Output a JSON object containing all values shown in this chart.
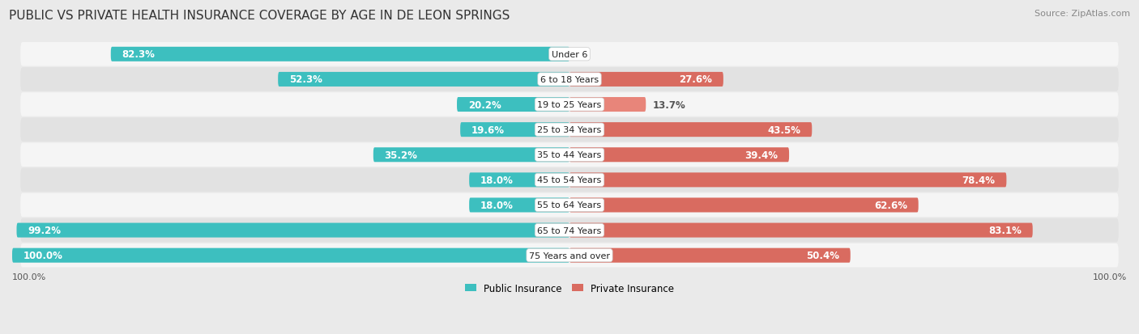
{
  "title": "PUBLIC VS PRIVATE HEALTH INSURANCE COVERAGE BY AGE IN DE LEON SPRINGS",
  "source": "Source: ZipAtlas.com",
  "categories": [
    "Under 6",
    "6 to 18 Years",
    "19 to 25 Years",
    "25 to 34 Years",
    "35 to 44 Years",
    "45 to 54 Years",
    "55 to 64 Years",
    "65 to 74 Years",
    "75 Years and over"
  ],
  "public_values": [
    82.3,
    52.3,
    20.2,
    19.6,
    35.2,
    18.0,
    18.0,
    99.2,
    100.0
  ],
  "private_values": [
    0.0,
    27.6,
    13.7,
    43.5,
    39.4,
    78.4,
    62.6,
    83.1,
    50.4
  ],
  "public_color": "#3DBFBF",
  "private_color": "#E8857A",
  "private_color_dark": "#D96B60",
  "bg_color": "#EAEAEA",
  "row_bg_light": "#F5F5F5",
  "row_bg_dark": "#E2E2E2",
  "bar_height": 0.58,
  "label_color_inside": "#FFFFFF",
  "label_color_outside": "#555555",
  "axis_label_left": "100.0%",
  "axis_label_right": "100.0%",
  "legend_label_public": "Public Insurance",
  "legend_label_private": "Private Insurance",
  "title_fontsize": 11,
  "source_fontsize": 8,
  "bar_label_fontsize": 8.5,
  "category_fontsize": 8,
  "axis_fontsize": 8,
  "inside_threshold": 15
}
